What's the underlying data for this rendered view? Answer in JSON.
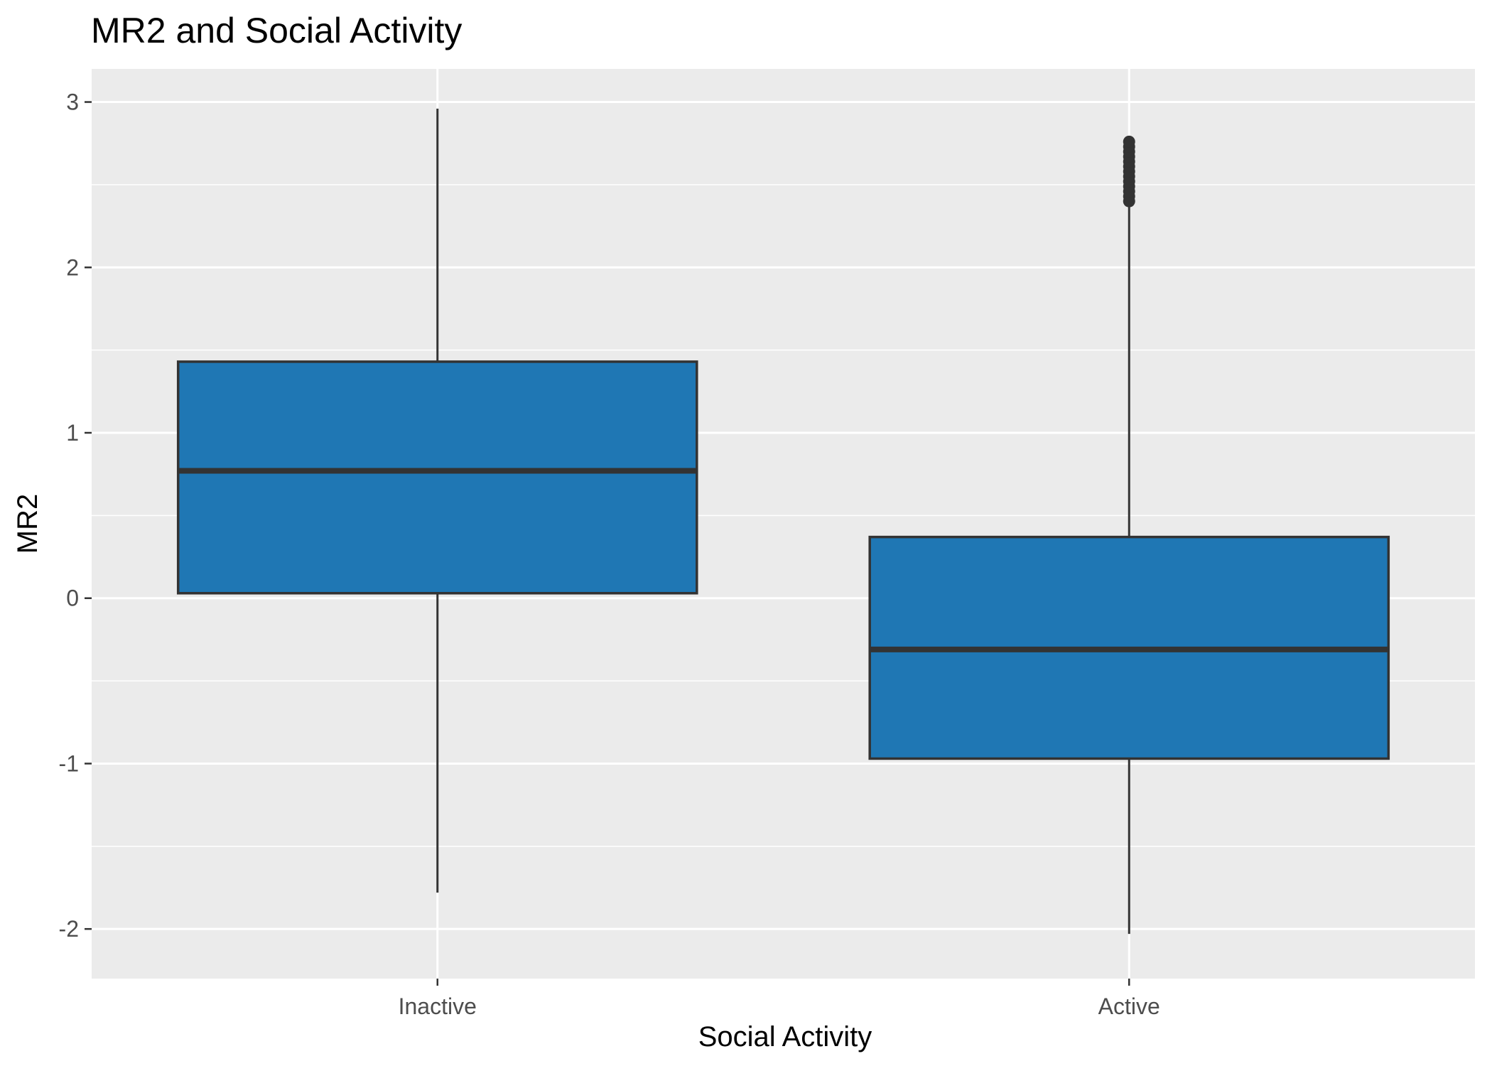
{
  "chart_data": {
    "type": "box",
    "title": "MR2 and Social Activity",
    "xlabel": "Social Activity",
    "ylabel": "MR2",
    "categories": [
      "Inactive",
      "Active"
    ],
    "ylim": [
      -2.3,
      3.2
    ],
    "y_ticks": [
      -2,
      -1,
      0,
      1,
      2,
      3
    ],
    "y_tick_labels": [
      "-2",
      "-1",
      "0",
      "1",
      "2",
      "3"
    ],
    "boxes": [
      {
        "category": "Inactive",
        "whisker_low": -1.78,
        "q1": 0.03,
        "median": 0.77,
        "q3": 1.43,
        "whisker_high": 2.96,
        "outliers": []
      },
      {
        "category": "Active",
        "whisker_low": -2.03,
        "q1": -0.97,
        "median": -0.31,
        "q3": 0.37,
        "whisker_high": 2.38,
        "outliers": [
          2.4,
          2.43,
          2.46,
          2.49,
          2.52,
          2.55,
          2.58,
          2.61,
          2.64,
          2.67,
          2.7,
          2.73,
          2.76
        ]
      }
    ],
    "colors": {
      "box_fill": "#1f77b4",
      "box_stroke": "#333333",
      "panel_bg": "#ebebeb",
      "grid": "#ffffff"
    },
    "grid": true,
    "legend": "none"
  }
}
